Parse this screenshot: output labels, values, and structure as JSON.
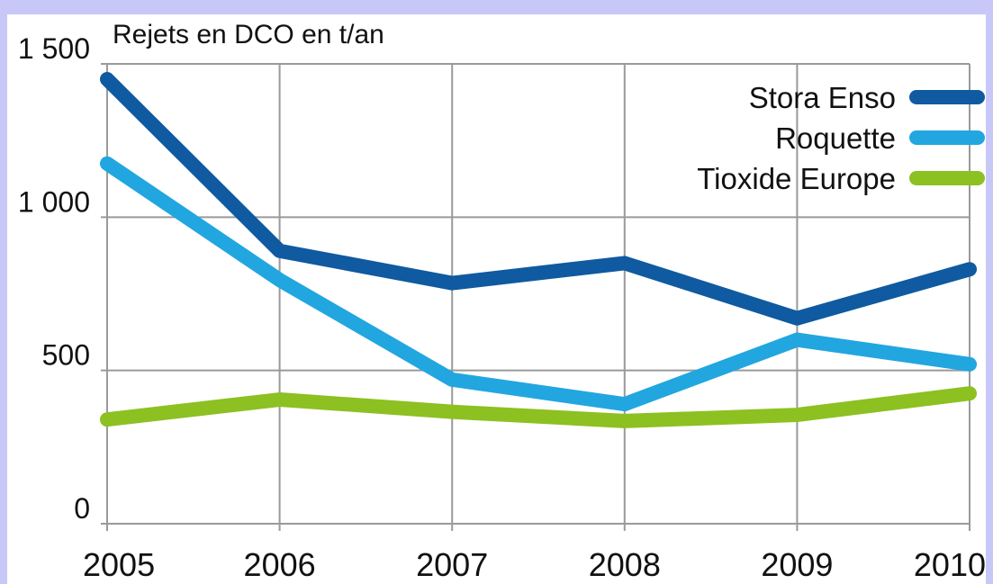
{
  "chart_data": {
    "type": "line",
    "title": "Rejets en DCO en t/an",
    "categories": [
      "2005",
      "2006",
      "2007",
      "2008",
      "2009",
      "2010"
    ],
    "series": [
      {
        "name": "Stora Enso",
        "color": "#0f5aa0",
        "values": [
          1450,
          890,
          785,
          850,
          670,
          830
        ]
      },
      {
        "name": "Roquette",
        "color": "#22a6e0",
        "values": [
          1175,
          795,
          470,
          390,
          600,
          520
        ]
      },
      {
        "name": "Tioxide Europe",
        "color": "#8dc021",
        "values": [
          340,
          405,
          365,
          335,
          355,
          425
        ]
      }
    ],
    "ylim": [
      0,
      1500
    ],
    "yticks": [
      0,
      500,
      {
        "value": 1000,
        "label": "1 000"
      },
      {
        "value": 1500,
        "label": "1 500"
      }
    ],
    "grid": true,
    "legend": "top-right"
  }
}
